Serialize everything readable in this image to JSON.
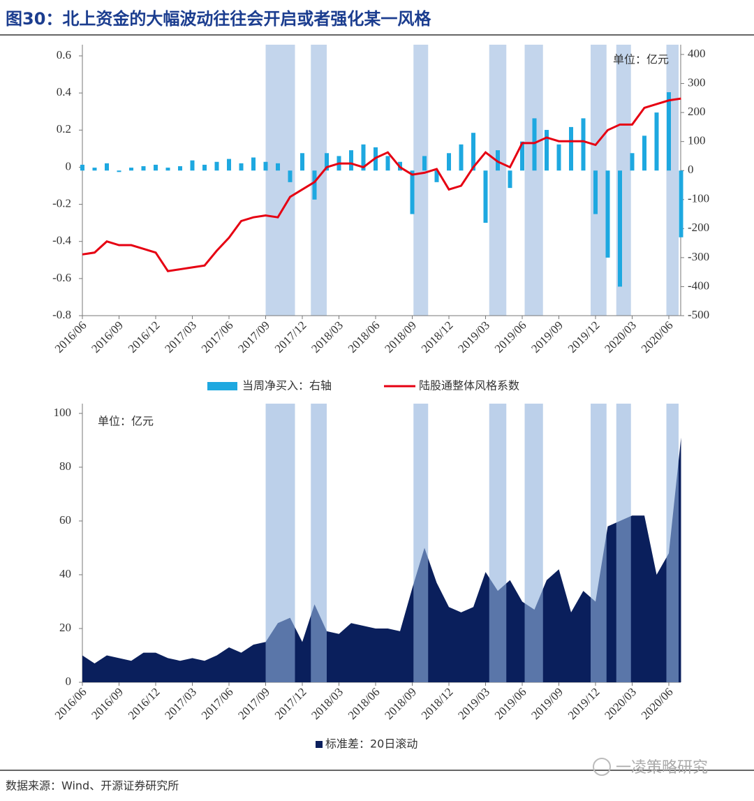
{
  "header": {
    "title": "图30：北上资金的大幅波动往往会开启或者强化某一风格"
  },
  "source": "数据来源：Wind、开源证券研究所",
  "watermark": "一凌策略研究",
  "chart_data": [
    {
      "type": "combo",
      "annotation": "单位：亿元",
      "x": [
        "2016/06",
        null,
        null,
        "2016/09",
        null,
        null,
        "2016/12",
        null,
        null,
        "2017/03",
        null,
        null,
        "2017/06",
        null,
        null,
        "2017/09",
        null,
        null,
        "2017/12",
        null,
        null,
        "2018/03",
        null,
        null,
        "2018/06",
        null,
        null,
        "2018/09",
        null,
        null,
        "2018/12",
        null,
        null,
        "2019/03",
        null,
        null,
        "2019/06",
        null,
        null,
        "2019/09",
        null,
        null,
        "2019/12",
        null,
        null,
        "2020/03",
        null,
        null,
        "2020/06",
        null
      ],
      "highlight_ranges": [
        [
          15.0,
          17.4
        ],
        [
          18.7,
          20.0
        ],
        [
          27.1,
          28.3
        ],
        [
          33.3,
          34.7
        ],
        [
          36.2,
          37.7
        ],
        [
          41.6,
          42.9
        ],
        [
          43.7,
          44.9
        ],
        [
          47.8,
          48.8
        ]
      ],
      "highlight_color": "#c3d5ec",
      "ylim": [
        -0.8,
        0.6
      ],
      "yticks": [
        -0.8,
        -0.6,
        -0.4,
        -0.2,
        0,
        0.2,
        0.4,
        0.6
      ],
      "y2lim": [
        -500,
        400
      ],
      "y2ticks": [
        -500,
        -400,
        -300,
        -200,
        -100,
        0,
        100,
        200,
        300,
        400
      ],
      "series": [
        {
          "name": "当周净买入：右轴",
          "type": "bar",
          "axis": "y2",
          "color": "#1ea8e0",
          "values": [
            20,
            10,
            25,
            -5,
            10,
            15,
            20,
            10,
            15,
            35,
            20,
            30,
            40,
            25,
            45,
            30,
            25,
            -40,
            60,
            -100,
            60,
            50,
            70,
            90,
            80,
            50,
            30,
            -150,
            50,
            -40,
            60,
            90,
            130,
            -180,
            70,
            -60,
            100,
            180,
            140,
            90,
            150,
            180,
            -150,
            -300,
            -400,
            60,
            120,
            200,
            270,
            -230
          ]
        },
        {
          "name": "陆股通整体风格系数",
          "type": "line",
          "color": "#e60012",
          "values": [
            -0.47,
            -0.46,
            -0.4,
            -0.42,
            -0.42,
            -0.44,
            -0.46,
            -0.56,
            -0.55,
            -0.54,
            -0.53,
            -0.45,
            -0.38,
            -0.29,
            -0.27,
            -0.26,
            -0.27,
            -0.16,
            -0.12,
            -0.08,
            0.0,
            0.02,
            0.02,
            0.0,
            0.05,
            0.08,
            0.0,
            -0.04,
            -0.03,
            -0.01,
            -0.12,
            -0.1,
            0.0,
            0.08,
            0.03,
            0.0,
            0.13,
            0.13,
            0.16,
            0.14,
            0.14,
            0.14,
            0.12,
            0.2,
            0.23,
            0.23,
            0.32,
            0.34,
            0.36,
            0.37
          ]
        }
      ]
    },
    {
      "type": "area",
      "annotation": "单位：亿元",
      "x": [
        "2016/06",
        null,
        null,
        "2016/09",
        null,
        null,
        "2016/12",
        null,
        null,
        "2017/03",
        null,
        null,
        "2017/06",
        null,
        null,
        "2017/09",
        null,
        null,
        "2017/12",
        null,
        null,
        "2018/03",
        null,
        null,
        "2018/06",
        null,
        null,
        "2018/09",
        null,
        null,
        "2018/12",
        null,
        null,
        "2019/03",
        null,
        null,
        "2019/06",
        null,
        null,
        "2019/09",
        null,
        null,
        "2019/12",
        null,
        null,
        "2020/03",
        null,
        null,
        "2020/06",
        null
      ],
      "highlight_ranges": [
        [
          15.0,
          17.4
        ],
        [
          18.7,
          20.0
        ],
        [
          27.1,
          28.3
        ],
        [
          33.3,
          34.7
        ],
        [
          36.2,
          37.7
        ],
        [
          41.6,
          42.9
        ],
        [
          43.7,
          44.9
        ],
        [
          47.8,
          48.8
        ]
      ],
      "highlight_color": "#8fb0dc",
      "ylim": [
        0,
        100
      ],
      "yticks": [
        0,
        20,
        40,
        60,
        80,
        100
      ],
      "series": [
        {
          "name": "标准差：20日滚动",
          "type": "area",
          "color": "#0a1f5c",
          "values": [
            10,
            7,
            10,
            9,
            8,
            11,
            11,
            9,
            8,
            9,
            8,
            10,
            13,
            11,
            14,
            15,
            22,
            24,
            15,
            29,
            19,
            18,
            22,
            21,
            20,
            20,
            19,
            35,
            50,
            37,
            28,
            26,
            28,
            41,
            34,
            38,
            30,
            27,
            38,
            42,
            26,
            34,
            30,
            58,
            60,
            62,
            62,
            40,
            48,
            91
          ]
        }
      ]
    }
  ]
}
